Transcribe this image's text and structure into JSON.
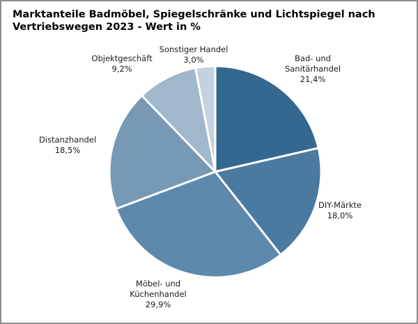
{
  "chart_data": {
    "type": "pie",
    "title_lines": [
      "Marktanteile Badmöbel, Spiegelschränke und Lichtspiegel nach",
      "Vertriebswegen 2023 - Wert in %"
    ],
    "slices": [
      {
        "label_lines": [
          "Bad- und",
          "Sanitärhandel"
        ],
        "value": 21.4,
        "value_text": "21,4%",
        "color": "#346891"
      },
      {
        "label_lines": [
          "DIY-Märkte"
        ],
        "value": 18.0,
        "value_text": "18,0%",
        "color": "#4a7aa0"
      },
      {
        "label_lines": [
          "Möbel- und",
          "Küchenhandel"
        ],
        "value": 29.9,
        "value_text": "29,9%",
        "color": "#5d89ac"
      },
      {
        "label_lines": [
          "Distanzhandel"
        ],
        "value": 18.5,
        "value_text": "18,5%",
        "color": "#7799b4"
      },
      {
        "label_lines": [
          "Objektgeschäft"
        ],
        "value": 9.2,
        "value_text": "9,2%",
        "color": "#a1b7cb"
      },
      {
        "label_lines": [
          "Sonstiger Handel"
        ],
        "value": 3.0,
        "value_text": "3,0%",
        "color": "#c3d2de"
      }
    ],
    "start_angle_deg": 0,
    "direction": "clockwise"
  }
}
